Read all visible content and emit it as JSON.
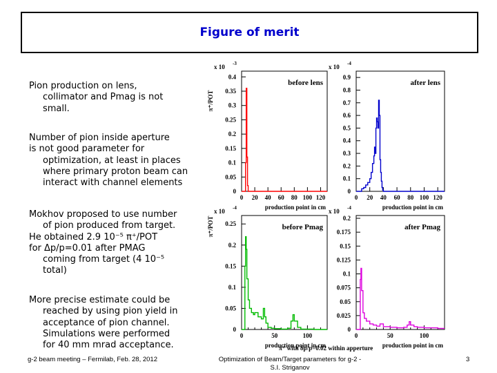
{
  "slide": {
    "title": "Figure of merit",
    "paragraphs": [
      [
        "Pion production  on lens,",
        "collimator and Pmag is not",
        "small."
      ],
      [
        "Number of pion inside aperture",
        "is not good parameter for",
        "optimization, at least in places",
        "where primary proton beam can",
        "interact with channel elements"
      ],
      [
        "Mokhov proposed to use number",
        "of pion produced from target.",
        "He obtained 2.9 10⁻⁵ π⁺/POT",
        "for Δp/p=0.01 after PMAG",
        "coming from target (4 10⁻⁵",
        "total)"
      ],
      [
        "More precise estimate could be",
        "reached by using pion yield in",
        "acceptance of pion channel.",
        "Simulations were performed",
        "for 40 mm mrad acceptance."
      ]
    ],
    "footer": {
      "left": "g-2 beam meeting – Fermilab, Feb. 28, 2012",
      "center_line1": "Optimization of Beam/Target parameters for g-2 -",
      "center_line2": "S.I. Striganov",
      "page": "3"
    }
  },
  "figure": {
    "ylabel_top": "π⁺/POT",
    "ylabel_bottom": "π⁺/POT",
    "bottom_caption": "π⁺ with δp/p=0.02 within apperture",
    "x_axis_label": "production point in cm"
  },
  "chart_data": [
    {
      "type": "line",
      "title": "before lens",
      "color": "#ff0000",
      "multiplier": "x 10",
      "exponent": "-3",
      "xlabel": "production point in cm",
      "xlim": [
        0,
        130
      ],
      "ylim": [
        0,
        0.42
      ],
      "xticks": [
        0,
        20,
        40,
        60,
        80,
        100,
        120
      ],
      "yticks": [
        "0",
        "0.05",
        "0.1",
        "0.15",
        "0.2",
        "0.25",
        "0.3",
        "0.35",
        "0.4"
      ],
      "x": [
        0,
        6,
        6,
        7,
        7,
        8,
        8,
        9,
        9,
        10,
        10,
        130
      ],
      "y": [
        0,
        0,
        0.1,
        0.2,
        0.36,
        0.28,
        0.12,
        0.05,
        0.02,
        0.01,
        0,
        0
      ]
    },
    {
      "type": "line",
      "title": "after lens",
      "color": "#0000cc",
      "multiplier": "x 10",
      "exponent": "-4",
      "xlabel": "production point in cm",
      "xlim": [
        0,
        130
      ],
      "ylim": [
        0,
        0.95
      ],
      "xticks": [
        0,
        20,
        40,
        60,
        80,
        100,
        120
      ],
      "yticks": [
        "0",
        "0.1",
        "0.2",
        "0.3",
        "0.4",
        "0.5",
        "0.6",
        "0.7",
        "0.8",
        "0.9"
      ],
      "x": [
        0,
        5,
        8,
        11,
        14,
        17,
        20,
        22,
        24,
        26,
        27,
        28,
        29,
        30,
        31,
        32,
        33,
        34,
        35,
        36,
        37,
        38,
        39,
        40,
        130
      ],
      "y": [
        0,
        0,
        0.02,
        0.03,
        0.05,
        0.07,
        0.1,
        0.15,
        0.22,
        0.28,
        0.35,
        0.3,
        0.5,
        0.58,
        0.55,
        0.5,
        0.72,
        0.6,
        0.25,
        0.15,
        0.08,
        0.03,
        0.01,
        0,
        0
      ]
    },
    {
      "type": "line",
      "title": "before Pmag",
      "color": "#00bb00",
      "multiplier": "x 10",
      "exponent": "-4",
      "xlabel": "production point in cm",
      "xlim": [
        0,
        130
      ],
      "ylim": [
        0,
        0.27
      ],
      "xticks": [
        0,
        10,
        20,
        30,
        40,
        50,
        60,
        70,
        80,
        90,
        100,
        110,
        120,
        130
      ],
      "xticklabels": [
        0,
        50,
        100
      ],
      "yticks": [
        "0",
        "0.05",
        "0.1",
        "0.15",
        "0.2",
        "0.25"
      ],
      "x": [
        0,
        4,
        5,
        6,
        7,
        8,
        10,
        12,
        15,
        18,
        20,
        25,
        30,
        33,
        35,
        37,
        40,
        45,
        50,
        60,
        70,
        75,
        78,
        80,
        85,
        90,
        100,
        110,
        130
      ],
      "y": [
        0,
        0,
        0.15,
        0.22,
        0.19,
        0.12,
        0.07,
        0.05,
        0.04,
        0.035,
        0.04,
        0.03,
        0.025,
        0.05,
        0.03,
        0.015,
        0.005,
        0.003,
        0.002,
        0.001,
        0.003,
        0.02,
        0.035,
        0.02,
        0.005,
        0.001,
        0.001,
        0,
        0
      ]
    },
    {
      "type": "line",
      "title": "after Pmag",
      "color": "#dd00dd",
      "multiplier": "x 10",
      "exponent": "-4",
      "xlabel": "production point in cm",
      "xlim": [
        0,
        130
      ],
      "ylim": [
        0,
        0.205
      ],
      "xticks": [
        0,
        10,
        20,
        30,
        40,
        50,
        60,
        70,
        80,
        90,
        100,
        110,
        120,
        130
      ],
      "xticklabels": [
        0,
        50,
        100
      ],
      "yticks": [
        "0",
        "0.025",
        "0.05",
        "0.075",
        "0.1",
        "0.125",
        "0.15",
        "0.175",
        "0.2"
      ],
      "x": [
        0,
        5,
        6,
        7,
        8,
        10,
        12,
        15,
        20,
        25,
        30,
        35,
        40,
        50,
        60,
        70,
        75,
        78,
        80,
        85,
        90,
        100,
        110,
        120,
        130
      ],
      "y": [
        0,
        0,
        0.09,
        0.11,
        0.07,
        0.03,
        0.02,
        0.015,
        0.01,
        0.008,
        0.006,
        0.01,
        0.005,
        0.004,
        0.003,
        0.004,
        0.008,
        0.014,
        0.008,
        0.005,
        0.004,
        0.003,
        0.003,
        0.002,
        0.002
      ]
    }
  ]
}
